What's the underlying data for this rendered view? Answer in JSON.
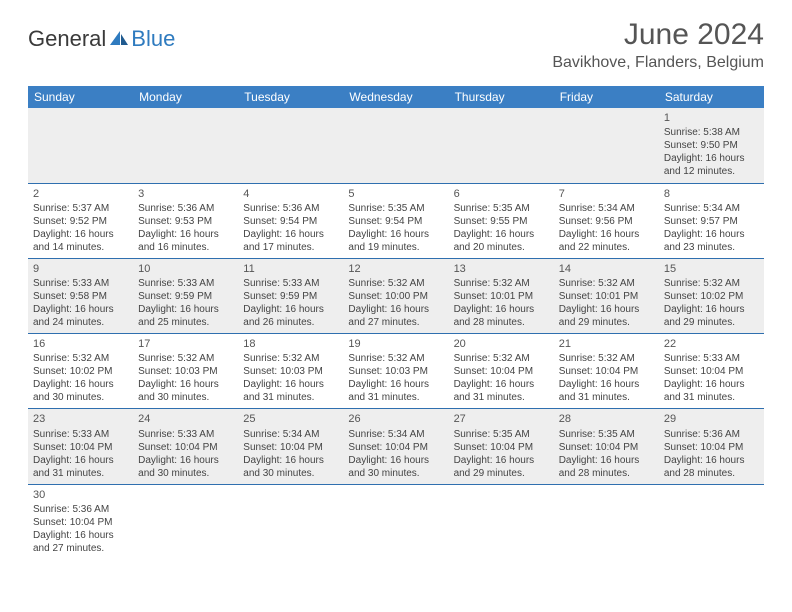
{
  "logo": {
    "text_general": "General",
    "text_blue": "Blue"
  },
  "title": "June 2024",
  "location": "Bavikhove, Flanders, Belgium",
  "colors": {
    "header_bg": "#3b7fc4",
    "header_text": "#ffffff",
    "row_stripe": "#eeeeee",
    "row_border": "#2f6faf",
    "text": "#444444",
    "title_text": "#555555",
    "logo_blue": "#2f7bbf"
  },
  "weekdays": [
    "Sunday",
    "Monday",
    "Tuesday",
    "Wednesday",
    "Thursday",
    "Friday",
    "Saturday"
  ],
  "weeks": [
    [
      null,
      null,
      null,
      null,
      null,
      null,
      {
        "day": "1",
        "sunrise": "Sunrise: 5:38 AM",
        "sunset": "Sunset: 9:50 PM",
        "daylight1": "Daylight: 16 hours",
        "daylight2": "and 12 minutes."
      }
    ],
    [
      {
        "day": "2",
        "sunrise": "Sunrise: 5:37 AM",
        "sunset": "Sunset: 9:52 PM",
        "daylight1": "Daylight: 16 hours",
        "daylight2": "and 14 minutes."
      },
      {
        "day": "3",
        "sunrise": "Sunrise: 5:36 AM",
        "sunset": "Sunset: 9:53 PM",
        "daylight1": "Daylight: 16 hours",
        "daylight2": "and 16 minutes."
      },
      {
        "day": "4",
        "sunrise": "Sunrise: 5:36 AM",
        "sunset": "Sunset: 9:54 PM",
        "daylight1": "Daylight: 16 hours",
        "daylight2": "and 17 minutes."
      },
      {
        "day": "5",
        "sunrise": "Sunrise: 5:35 AM",
        "sunset": "Sunset: 9:54 PM",
        "daylight1": "Daylight: 16 hours",
        "daylight2": "and 19 minutes."
      },
      {
        "day": "6",
        "sunrise": "Sunrise: 5:35 AM",
        "sunset": "Sunset: 9:55 PM",
        "daylight1": "Daylight: 16 hours",
        "daylight2": "and 20 minutes."
      },
      {
        "day": "7",
        "sunrise": "Sunrise: 5:34 AM",
        "sunset": "Sunset: 9:56 PM",
        "daylight1": "Daylight: 16 hours",
        "daylight2": "and 22 minutes."
      },
      {
        "day": "8",
        "sunrise": "Sunrise: 5:34 AM",
        "sunset": "Sunset: 9:57 PM",
        "daylight1": "Daylight: 16 hours",
        "daylight2": "and 23 minutes."
      }
    ],
    [
      {
        "day": "9",
        "sunrise": "Sunrise: 5:33 AM",
        "sunset": "Sunset: 9:58 PM",
        "daylight1": "Daylight: 16 hours",
        "daylight2": "and 24 minutes."
      },
      {
        "day": "10",
        "sunrise": "Sunrise: 5:33 AM",
        "sunset": "Sunset: 9:59 PM",
        "daylight1": "Daylight: 16 hours",
        "daylight2": "and 25 minutes."
      },
      {
        "day": "11",
        "sunrise": "Sunrise: 5:33 AM",
        "sunset": "Sunset: 9:59 PM",
        "daylight1": "Daylight: 16 hours",
        "daylight2": "and 26 minutes."
      },
      {
        "day": "12",
        "sunrise": "Sunrise: 5:32 AM",
        "sunset": "Sunset: 10:00 PM",
        "daylight1": "Daylight: 16 hours",
        "daylight2": "and 27 minutes."
      },
      {
        "day": "13",
        "sunrise": "Sunrise: 5:32 AM",
        "sunset": "Sunset: 10:01 PM",
        "daylight1": "Daylight: 16 hours",
        "daylight2": "and 28 minutes."
      },
      {
        "day": "14",
        "sunrise": "Sunrise: 5:32 AM",
        "sunset": "Sunset: 10:01 PM",
        "daylight1": "Daylight: 16 hours",
        "daylight2": "and 29 minutes."
      },
      {
        "day": "15",
        "sunrise": "Sunrise: 5:32 AM",
        "sunset": "Sunset: 10:02 PM",
        "daylight1": "Daylight: 16 hours",
        "daylight2": "and 29 minutes."
      }
    ],
    [
      {
        "day": "16",
        "sunrise": "Sunrise: 5:32 AM",
        "sunset": "Sunset: 10:02 PM",
        "daylight1": "Daylight: 16 hours",
        "daylight2": "and 30 minutes."
      },
      {
        "day": "17",
        "sunrise": "Sunrise: 5:32 AM",
        "sunset": "Sunset: 10:03 PM",
        "daylight1": "Daylight: 16 hours",
        "daylight2": "and 30 minutes."
      },
      {
        "day": "18",
        "sunrise": "Sunrise: 5:32 AM",
        "sunset": "Sunset: 10:03 PM",
        "daylight1": "Daylight: 16 hours",
        "daylight2": "and 31 minutes."
      },
      {
        "day": "19",
        "sunrise": "Sunrise: 5:32 AM",
        "sunset": "Sunset: 10:03 PM",
        "daylight1": "Daylight: 16 hours",
        "daylight2": "and 31 minutes."
      },
      {
        "day": "20",
        "sunrise": "Sunrise: 5:32 AM",
        "sunset": "Sunset: 10:04 PM",
        "daylight1": "Daylight: 16 hours",
        "daylight2": "and 31 minutes."
      },
      {
        "day": "21",
        "sunrise": "Sunrise: 5:32 AM",
        "sunset": "Sunset: 10:04 PM",
        "daylight1": "Daylight: 16 hours",
        "daylight2": "and 31 minutes."
      },
      {
        "day": "22",
        "sunrise": "Sunrise: 5:33 AM",
        "sunset": "Sunset: 10:04 PM",
        "daylight1": "Daylight: 16 hours",
        "daylight2": "and 31 minutes."
      }
    ],
    [
      {
        "day": "23",
        "sunrise": "Sunrise: 5:33 AM",
        "sunset": "Sunset: 10:04 PM",
        "daylight1": "Daylight: 16 hours",
        "daylight2": "and 31 minutes."
      },
      {
        "day": "24",
        "sunrise": "Sunrise: 5:33 AM",
        "sunset": "Sunset: 10:04 PM",
        "daylight1": "Daylight: 16 hours",
        "daylight2": "and 30 minutes."
      },
      {
        "day": "25",
        "sunrise": "Sunrise: 5:34 AM",
        "sunset": "Sunset: 10:04 PM",
        "daylight1": "Daylight: 16 hours",
        "daylight2": "and 30 minutes."
      },
      {
        "day": "26",
        "sunrise": "Sunrise: 5:34 AM",
        "sunset": "Sunset: 10:04 PM",
        "daylight1": "Daylight: 16 hours",
        "daylight2": "and 30 minutes."
      },
      {
        "day": "27",
        "sunrise": "Sunrise: 5:35 AM",
        "sunset": "Sunset: 10:04 PM",
        "daylight1": "Daylight: 16 hours",
        "daylight2": "and 29 minutes."
      },
      {
        "day": "28",
        "sunrise": "Sunrise: 5:35 AM",
        "sunset": "Sunset: 10:04 PM",
        "daylight1": "Daylight: 16 hours",
        "daylight2": "and 28 minutes."
      },
      {
        "day": "29",
        "sunrise": "Sunrise: 5:36 AM",
        "sunset": "Sunset: 10:04 PM",
        "daylight1": "Daylight: 16 hours",
        "daylight2": "and 28 minutes."
      }
    ],
    [
      {
        "day": "30",
        "sunrise": "Sunrise: 5:36 AM",
        "sunset": "Sunset: 10:04 PM",
        "daylight1": "Daylight: 16 hours",
        "daylight2": "and 27 minutes."
      },
      null,
      null,
      null,
      null,
      null,
      null
    ]
  ]
}
